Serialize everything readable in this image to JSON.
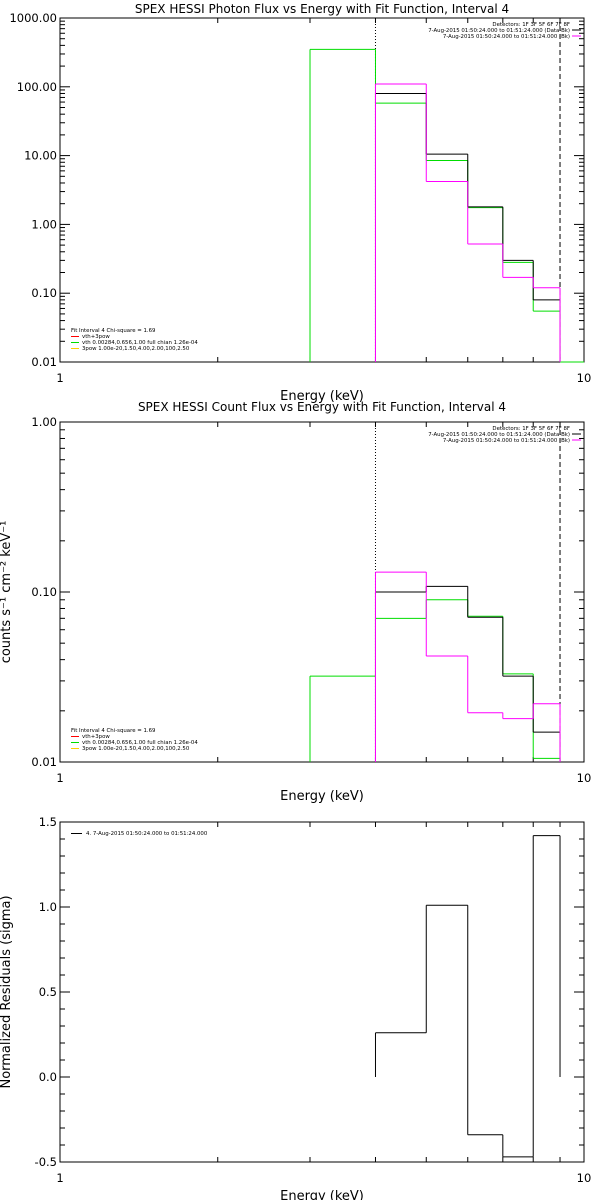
{
  "colors": {
    "data": "#000000",
    "model": "#ff00ff",
    "fit": "#00dd00",
    "thermal": "#ff0000",
    "powerlaw": "#ffcc00"
  },
  "chart_data": [
    {
      "type": "histogram-step",
      "title": "SPEX HESSI Photon Flux vs Energy with Fit Function, Interval 4",
      "xlabel": "Energy (keV)",
      "ylabel": "",
      "xscale": "log",
      "yscale": "log",
      "xlim": [
        1,
        10
      ],
      "ylim": [
        0.01,
        1000
      ],
      "xticks": [
        "1",
        "10"
      ],
      "yticks": [
        "0.01",
        "0.10",
        "1.00",
        "10.00",
        "100.00",
        "1000.00"
      ],
      "vlines": [
        {
          "x": 4.0,
          "style": "dotted"
        },
        {
          "x": 9.0,
          "style": "dashed"
        }
      ],
      "header": [
        "Detectors: 1F 3F 5F 6F 7F 8F",
        "7-Aug-2015 01:50:24.000 to 01:51:24.000 (Data-Bk)",
        "7-Aug-2015 01:50:24.000 to 01:51:24.000 (Bk)"
      ],
      "legend": [
        "Fit Interval  4    Chi-square = 1.69",
        "vth+3pow",
        "vth 0.00284,0.656,1.00  full chian 1.26e-04",
        "3pow 1.00e-20,1.50,4.00,2.00,100,2.50"
      ],
      "series": [
        {
          "role": "data",
          "bins": [
            [
              4,
              5
            ],
            [
              5,
              6
            ],
            [
              6,
              7
            ],
            [
              7,
              8
            ],
            [
              8,
              9
            ]
          ],
          "values": [
            80,
            10.5,
            1.8,
            0.3,
            0.08
          ]
        },
        {
          "role": "model",
          "bins": [
            [
              4,
              5
            ],
            [
              5,
              6
            ],
            [
              6,
              7
            ],
            [
              7,
              8
            ],
            [
              8,
              9
            ]
          ],
          "values": [
            110,
            4.2,
            0.52,
            0.17,
            0.12
          ]
        },
        {
          "role": "fit",
          "bins": [
            [
              3,
              4
            ],
            [
              4,
              5
            ],
            [
              5,
              6
            ],
            [
              6,
              7
            ],
            [
              7,
              8
            ],
            [
              8,
              9
            ],
            [
              9,
              10
            ]
          ],
          "values": [
            350,
            58,
            8.5,
            1.75,
            0.28,
            0.055,
            0.0095
          ]
        }
      ]
    },
    {
      "type": "histogram-step",
      "title": "SPEX HESSI Count Flux vs Energy with Fit Function, Interval 4",
      "xlabel": "Energy (keV)",
      "ylabel": "counts s⁻¹ cm⁻² keV⁻¹",
      "xscale": "log",
      "yscale": "log",
      "xlim": [
        1,
        10
      ],
      "ylim": [
        0.01,
        1.0
      ],
      "xticks": [
        "1",
        "10"
      ],
      "yticks": [
        "0.01",
        "0.10",
        "1.00"
      ],
      "vlines": [
        {
          "x": 4.0,
          "style": "dotted"
        },
        {
          "x": 9.0,
          "style": "dashed"
        }
      ],
      "header": [
        "Detectors: 1F 3F 5F 6F 7F 8F",
        "7-Aug-2015 01:50:24.000 to 01:51:24.000 (Data-Bk)",
        "7-Aug-2015 01:50:24.000 to 01:51:24.000 (Bk)"
      ],
      "legend": [
        "Fit Interval  4    Chi-square = 1.69",
        "vth+3pow",
        "vth 0.00284,0.656,1.00  full chian 1.26e-04",
        "3pow 1.00e-20,1.50,4.00,2.00,100,2.50"
      ],
      "series": [
        {
          "role": "data",
          "bins": [
            [
              4,
              5
            ],
            [
              5,
              6
            ],
            [
              6,
              7
            ],
            [
              7,
              8
            ],
            [
              8,
              9
            ]
          ],
          "values": [
            0.1,
            0.108,
            0.071,
            0.032,
            0.015
          ]
        },
        {
          "role": "model",
          "bins": [
            [
              4,
              5
            ],
            [
              5,
              6
            ],
            [
              6,
              7
            ],
            [
              7,
              8
            ],
            [
              8,
              9
            ]
          ],
          "values": [
            0.131,
            0.042,
            0.0195,
            0.018,
            0.022
          ]
        },
        {
          "role": "fit",
          "bins": [
            [
              3,
              4
            ],
            [
              4,
              5
            ],
            [
              5,
              6
            ],
            [
              6,
              7
            ],
            [
              7,
              8
            ],
            [
              8,
              9
            ]
          ],
          "values": [
            0.032,
            0.07,
            0.09,
            0.072,
            0.033,
            0.0105
          ]
        }
      ]
    },
    {
      "type": "histogram-step",
      "title": "",
      "xlabel": "Energy (keV)",
      "ylabel": "Normalized Residuals (sigma)",
      "xscale": "log",
      "yscale": "linear",
      "xlim": [
        1,
        10
      ],
      "ylim": [
        -0.5,
        1.5
      ],
      "xticks": [
        "1",
        "10"
      ],
      "yticks": [
        "-0.5",
        "0.0",
        "0.5",
        "1.0",
        "1.5"
      ],
      "legend": [
        "4.  7-Aug-2015 01:50:24.000 to 01:51:24.000"
      ],
      "series": [
        {
          "role": "data",
          "bins": [
            [
              4,
              5
            ],
            [
              5,
              6
            ],
            [
              6,
              7
            ],
            [
              7,
              8
            ],
            [
              8,
              9
            ]
          ],
          "values": [
            0.26,
            1.01,
            -0.34,
            -0.47,
            1.42
          ]
        }
      ]
    }
  ]
}
